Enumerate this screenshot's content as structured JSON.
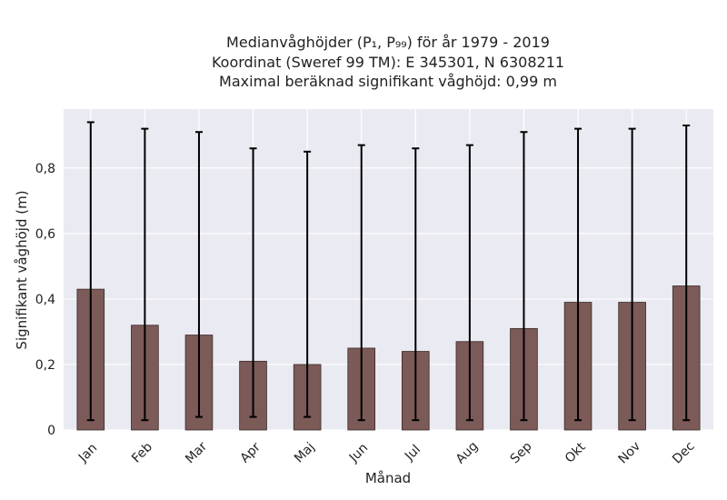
{
  "chart_data": {
    "type": "bar",
    "title_lines": [
      "Medianvåghöjder (P₁, P₉₉) för år 1979 - 2019",
      "Koordinat (Sweref 99 TM): E 345301, N 6308211",
      "Maximal beräknad signifikant våghöjd: 0,99 m"
    ],
    "xlabel": "Månad",
    "ylabel": "Signifikant våghöjd (m)",
    "categories": [
      "Jan",
      "Feb",
      "Mar",
      "Apr",
      "Maj",
      "Jun",
      "Jul",
      "Aug",
      "Sep",
      "Okt",
      "Nov",
      "Dec"
    ],
    "values": [
      0.43,
      0.32,
      0.29,
      0.21,
      0.2,
      0.25,
      0.24,
      0.27,
      0.31,
      0.39,
      0.39,
      0.44
    ],
    "error_low": [
      0.03,
      0.03,
      0.04,
      0.04,
      0.04,
      0.03,
      0.03,
      0.03,
      0.03,
      0.03,
      0.03,
      0.03
    ],
    "error_high": [
      0.94,
      0.92,
      0.91,
      0.86,
      0.85,
      0.87,
      0.86,
      0.87,
      0.91,
      0.92,
      0.92,
      0.93
    ],
    "ylim": [
      0,
      0.98
    ],
    "yticks": [
      0,
      0.2,
      0.4,
      0.6,
      0.8
    ],
    "ytick_labels": [
      "0",
      "0,2",
      "0,4",
      "0,6",
      "0,8"
    ],
    "grid": true,
    "colors": {
      "bar": "#7b5a58",
      "bar_edge": "#3a2a28",
      "plot_background": "#eaeaf2",
      "grid": "#ffffff",
      "error_bar": "#000000"
    }
  }
}
